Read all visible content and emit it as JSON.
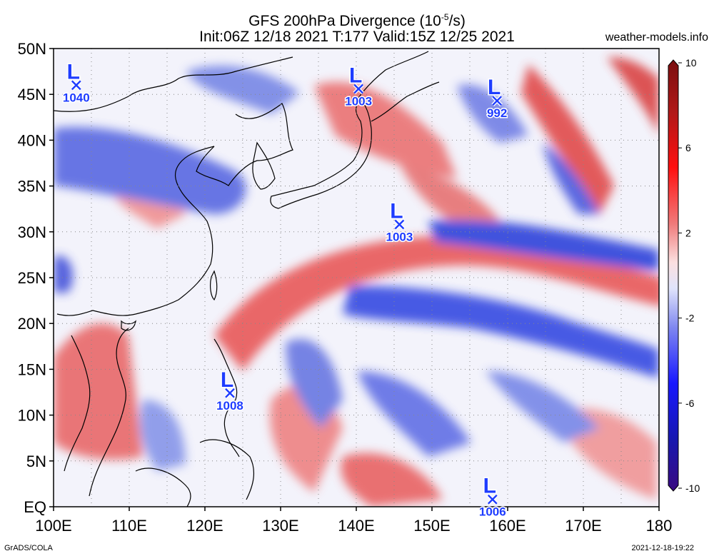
{
  "header": {
    "title_main": "GFS 200hPa Divergence (10",
    "title_exp": "-5",
    "title_tail": "/s)",
    "subtitle": "Init:06Z 12/18 2021 T:177 Valid:15Z 12/25 2021",
    "site": "weather-models.info"
  },
  "axes": {
    "lat_labels": [
      "50N",
      "45N",
      "40N",
      "35N",
      "30N",
      "25N",
      "20N",
      "15N",
      "10N",
      "5N",
      "EQ"
    ],
    "lon_labels": [
      "100E",
      "110E",
      "120E",
      "130E",
      "140E",
      "150E",
      "160E",
      "170E",
      "180"
    ],
    "lon_range": [
      100,
      180
    ],
    "lat_range": [
      0,
      50
    ]
  },
  "colorbar": {
    "tick_labels": [
      "10",
      "6",
      "2",
      "-2",
      "-6",
      "-10"
    ],
    "tick_values": [
      10,
      6,
      2,
      -2,
      -6,
      -10
    ],
    "range": [
      -10,
      10
    ]
  },
  "lows": [
    {
      "symbol": "L",
      "pressure": "1040",
      "lon": 103.0,
      "lat": 46.0
    },
    {
      "symbol": "L",
      "pressure": "1003",
      "lon": 140.3,
      "lat": 45.6
    },
    {
      "symbol": "L",
      "pressure": "992",
      "lon": 158.6,
      "lat": 44.3
    },
    {
      "symbol": "L",
      "pressure": "1003",
      "lon": 145.7,
      "lat": 30.8
    },
    {
      "symbol": "L",
      "pressure": "1008",
      "lon": 123.3,
      "lat": 12.4
    },
    {
      "symbol": "L",
      "pressure": "1006",
      "lon": 158.0,
      "lat": 0.8
    }
  ],
  "footer": {
    "left": "GrADS/COLA",
    "right": "2021-12-18-19:22"
  },
  "colors": {
    "low_marker": "#1e3cff",
    "positive": "#d83030",
    "negative": "#2a3ce0"
  }
}
